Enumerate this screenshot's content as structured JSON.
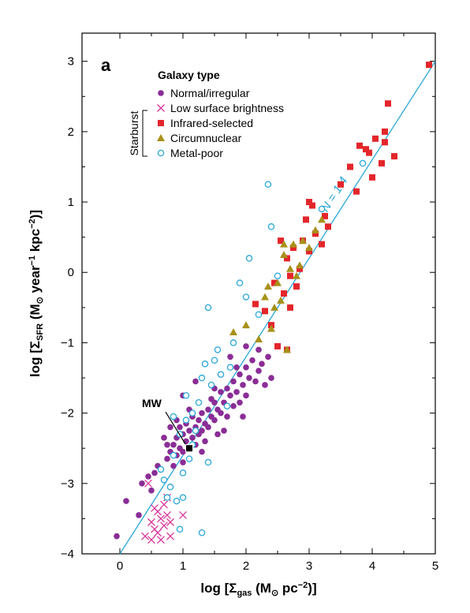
{
  "chart_data": {
    "type": "scatter",
    "panel_label": "a",
    "xlabel": {
      "pre": "log [",
      "sym": "Σ",
      "sub": "gas",
      "post": " (M",
      "sun": "⊙",
      "tail": " pc",
      "sup": "−2",
      "end": ")]"
    },
    "ylabel": {
      "pre": "log [",
      "sym": "Σ",
      "sub": "SFR",
      "post": " (M",
      "sun": "⊙",
      "tail": " year",
      "sup1": "−1",
      "mid": " kpc",
      "sup2": "−2",
      "end": ")]"
    },
    "xlim": [
      -0.6,
      5.0
    ],
    "ylim": [
      -4.0,
      3.4
    ],
    "xticks": [
      "0",
      "1",
      "2",
      "3",
      "4",
      "5"
    ],
    "yticks": [
      "−4",
      "−3",
      "−2",
      "−1",
      "0",
      "1",
      "2",
      "3"
    ],
    "xtick_values": [
      0,
      1,
      2,
      3,
      4,
      5
    ],
    "ytick_values": [
      -4,
      -3,
      -2,
      -1,
      0,
      1,
      2,
      3
    ],
    "legend": {
      "title": "Galaxy type",
      "group_label": "Starburst",
      "entries": [
        {
          "label": "Normal/irregular",
          "marker": "dot",
          "color": "#8a2d96"
        },
        {
          "label": "Low surface brightness",
          "marker": "x",
          "color": "#d8379b"
        },
        {
          "label": "Infrared-selected",
          "marker": "square",
          "color": "#e3262b"
        },
        {
          "label": "Circumnuclear",
          "marker": "triangle",
          "color": "#a8911a"
        },
        {
          "label": "Metal-poor",
          "marker": "ring",
          "color": "#2aa7d9"
        }
      ]
    },
    "fit_line": {
      "label": "N = 1.4",
      "slope": 1.4,
      "intercept": -4.0,
      "color": "#2aa7d9"
    },
    "annotation": {
      "label": "MW",
      "x": 1.1,
      "y": -2.5
    },
    "series": [
      {
        "name": "Normal/irregular",
        "marker": "dot",
        "color": "#8a2d96",
        "points": [
          [
            -0.05,
            -3.75
          ],
          [
            0.1,
            -3.25
          ],
          [
            0.3,
            -3.45
          ],
          [
            0.35,
            -3.0
          ],
          [
            0.45,
            -2.9
          ],
          [
            0.5,
            -3.1
          ],
          [
            0.55,
            -2.85
          ],
          [
            0.6,
            -2.75
          ],
          [
            0.65,
            -2.8
          ],
          [
            0.7,
            -2.95
          ],
          [
            0.75,
            -2.65
          ],
          [
            0.75,
            -2.45
          ],
          [
            0.8,
            -2.55
          ],
          [
            0.85,
            -2.45
          ],
          [
            0.85,
            -2.75
          ],
          [
            0.9,
            -2.35
          ],
          [
            0.9,
            -2.6
          ],
          [
            0.95,
            -2.5
          ],
          [
            0.95,
            -2.2
          ],
          [
            1.0,
            -2.3
          ],
          [
            1.0,
            -2.55
          ],
          [
            1.0,
            -2.7
          ],
          [
            1.05,
            -2.4
          ],
          [
            1.05,
            -2.15
          ],
          [
            1.1,
            -2.25
          ],
          [
            1.1,
            -2.5
          ],
          [
            1.15,
            -2.35
          ],
          [
            1.15,
            -2.05
          ],
          [
            1.2,
            -2.2
          ],
          [
            1.2,
            -2.45
          ],
          [
            1.25,
            -2.3
          ],
          [
            1.25,
            -2.1
          ],
          [
            1.3,
            -2.0
          ],
          [
            1.3,
            -2.25
          ],
          [
            1.35,
            -2.15
          ],
          [
            1.35,
            -2.4
          ],
          [
            1.4,
            -1.95
          ],
          [
            1.4,
            -2.2
          ],
          [
            1.45,
            -2.05
          ],
          [
            1.45,
            -1.8
          ],
          [
            1.5,
            -2.1
          ],
          [
            1.5,
            -1.85
          ],
          [
            1.55,
            -1.95
          ],
          [
            1.55,
            -2.3
          ],
          [
            1.6,
            -1.7
          ],
          [
            1.6,
            -2.0
          ],
          [
            1.65,
            -1.85
          ],
          [
            1.7,
            -1.65
          ],
          [
            1.7,
            -2.05
          ],
          [
            1.75,
            -1.75
          ],
          [
            1.8,
            -1.9
          ],
          [
            1.8,
            -1.55
          ],
          [
            1.85,
            -1.7
          ],
          [
            1.9,
            -1.45
          ],
          [
            1.9,
            -1.85
          ],
          [
            1.95,
            -1.6
          ],
          [
            2.0,
            -1.75
          ],
          [
            2.0,
            -1.35
          ],
          [
            2.05,
            -1.5
          ],
          [
            2.1,
            -1.25
          ],
          [
            2.15,
            -1.55
          ],
          [
            2.2,
            -1.4
          ],
          [
            2.2,
            -1.1
          ],
          [
            2.25,
            -1.3
          ],
          [
            2.3,
            -1.6
          ],
          [
            2.35,
            -1.2
          ],
          [
            1.2,
            -1.55
          ],
          [
            1.0,
            -1.75
          ],
          [
            0.9,
            -2.1
          ],
          [
            1.5,
            -1.65
          ],
          [
            1.65,
            -2.25
          ],
          [
            1.85,
            -1.35
          ],
          [
            0.8,
            -2.2
          ],
          [
            1.3,
            -2.55
          ],
          [
            2.0,
            -1.05
          ],
          [
            1.75,
            -1.2
          ],
          [
            2.4,
            -1.5
          ],
          [
            1.1,
            -1.95
          ],
          [
            0.7,
            -2.35
          ],
          [
            1.95,
            -2.05
          ]
        ]
      },
      {
        "name": "Low surface brightness",
        "marker": "x",
        "color": "#d8379b",
        "points": [
          [
            0.4,
            -3.75
          ],
          [
            0.5,
            -3.8
          ],
          [
            0.55,
            -3.65
          ],
          [
            0.6,
            -3.4
          ],
          [
            0.6,
            -3.7
          ],
          [
            0.65,
            -3.5
          ],
          [
            0.7,
            -3.6
          ],
          [
            0.7,
            -3.3
          ],
          [
            0.75,
            -3.2
          ],
          [
            0.8,
            -3.75
          ],
          [
            0.55,
            -3.35
          ],
          [
            0.5,
            -3.55
          ],
          [
            0.65,
            -3.8
          ],
          [
            0.75,
            -3.45
          ],
          [
            0.45,
            -3.0
          ],
          [
            1.0,
            -3.45
          ],
          [
            0.8,
            -3.55
          ]
        ]
      },
      {
        "name": "Infrared-selected",
        "marker": "square",
        "color": "#e3262b",
        "points": [
          [
            2.15,
            -0.45
          ],
          [
            2.3,
            -0.55
          ],
          [
            2.4,
            -0.75
          ],
          [
            2.45,
            -0.15
          ],
          [
            2.5,
            -1.05
          ],
          [
            2.55,
            0.45
          ],
          [
            2.6,
            -0.3
          ],
          [
            2.65,
            0.2
          ],
          [
            2.7,
            -0.05
          ],
          [
            2.7,
            -0.5
          ],
          [
            2.75,
            0.35
          ],
          [
            2.8,
            -0.2
          ],
          [
            2.85,
            0.05
          ],
          [
            2.9,
            0.45
          ],
          [
            2.95,
            0.75
          ],
          [
            3.0,
            0.3
          ],
          [
            3.05,
            0.95
          ],
          [
            3.1,
            0.55
          ],
          [
            3.2,
            0.4
          ],
          [
            3.25,
            0.8
          ],
          [
            3.3,
            0.65
          ],
          [
            3.5,
            1.25
          ],
          [
            3.65,
            1.5
          ],
          [
            3.75,
            1.15
          ],
          [
            3.8,
            1.8
          ],
          [
            3.95,
            1.7
          ],
          [
            4.0,
            1.35
          ],
          [
            4.05,
            1.9
          ],
          [
            4.15,
            1.55
          ],
          [
            4.2,
            2.0
          ],
          [
            4.25,
            2.4
          ],
          [
            4.35,
            1.65
          ],
          [
            4.9,
            2.95
          ],
          [
            3.0,
            1.0
          ],
          [
            4.2,
            1.85
          ],
          [
            3.9,
            1.75
          ],
          [
            2.65,
            -1.1
          ]
        ]
      },
      {
        "name": "Circumnuclear",
        "marker": "triangle",
        "color": "#a8911a",
        "points": [
          [
            1.8,
            -0.85
          ],
          [
            2.0,
            -0.75
          ],
          [
            2.2,
            -0.95
          ],
          [
            2.3,
            -0.35
          ],
          [
            2.4,
            -0.8
          ],
          [
            2.45,
            -0.5
          ],
          [
            2.5,
            -0.15
          ],
          [
            2.55,
            -0.4
          ],
          [
            2.6,
            0.25
          ],
          [
            2.65,
            -1.1
          ],
          [
            2.7,
            0.05
          ],
          [
            2.75,
            0.4
          ],
          [
            2.8,
            -0.05
          ],
          [
            2.85,
            0.1
          ],
          [
            2.9,
            0.45
          ],
          [
            3.0,
            0.35
          ],
          [
            3.1,
            0.6
          ],
          [
            3.2,
            0.75
          ],
          [
            2.35,
            -0.2
          ],
          [
            2.6,
            0.4
          ]
        ]
      },
      {
        "name": "Metal-poor",
        "marker": "ring",
        "color": "#2aa7d9",
        "points": [
          [
            0.65,
            -2.8
          ],
          [
            0.7,
            -2.95
          ],
          [
            0.75,
            -3.2
          ],
          [
            0.8,
            -3.05
          ],
          [
            0.85,
            -2.6
          ],
          [
            0.9,
            -3.25
          ],
          [
            0.95,
            -2.3
          ],
          [
            0.95,
            -3.65
          ],
          [
            1.0,
            -2.85
          ],
          [
            1.05,
            -2.1
          ],
          [
            1.1,
            -2.65
          ],
          [
            1.15,
            -2.0
          ],
          [
            1.2,
            -2.25
          ],
          [
            1.25,
            -1.85
          ],
          [
            1.3,
            -1.5
          ],
          [
            1.3,
            -3.7
          ],
          [
            1.35,
            -1.3
          ],
          [
            1.4,
            -2.7
          ],
          [
            1.45,
            -1.6
          ],
          [
            1.55,
            -1.1
          ],
          [
            1.6,
            -1.45
          ],
          [
            1.7,
            -1.9
          ],
          [
            1.75,
            -1.35
          ],
          [
            1.8,
            -1.0
          ],
          [
            1.9,
            -0.15
          ],
          [
            2.05,
            0.2
          ],
          [
            2.2,
            -0.6
          ],
          [
            2.35,
            1.25
          ],
          [
            2.4,
            0.65
          ],
          [
            2.5,
            -0.05
          ],
          [
            3.2,
            0.9
          ],
          [
            3.85,
            1.55
          ],
          [
            1.05,
            -1.75
          ],
          [
            1.15,
            -2.45
          ],
          [
            1.0,
            -3.2
          ],
          [
            1.4,
            -0.5
          ],
          [
            1.5,
            -1.25
          ],
          [
            2.0,
            -0.35
          ],
          [
            0.85,
            -2.05
          ]
        ]
      }
    ]
  }
}
